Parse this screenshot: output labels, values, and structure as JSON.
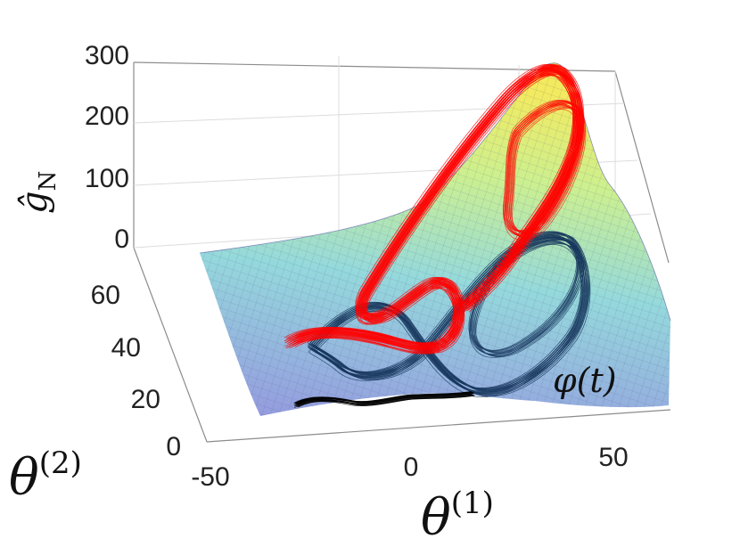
{
  "chart_data": {
    "type": "surface",
    "title": "",
    "x_axis": {
      "label": "θ",
      "superscript": "(1)",
      "ticks": [
        "-50",
        "0",
        "50"
      ]
    },
    "y_axis": {
      "label": "θ",
      "superscript": "(2)",
      "ticks": [
        "0",
        "20",
        "40",
        "60"
      ]
    },
    "z_axis": {
      "label": "ĝ",
      "subscript": "N",
      "ticks": [
        "0",
        "100",
        "200",
        "300"
      ],
      "range": [
        0,
        300
      ]
    },
    "annotation": "φ(t)",
    "surface": {
      "colormap": [
        "#8f93dd",
        "#8ed6d8",
        "#c7ef8a",
        "#f3ea55"
      ],
      "peak": 290
    },
    "series": [
      {
        "role": "trajectory on surface",
        "color": "#ff0000"
      },
      {
        "role": "trajectory projection",
        "color": "#17365c"
      },
      {
        "role": "trajectory base",
        "color": "#000000"
      }
    ],
    "grid": true
  }
}
